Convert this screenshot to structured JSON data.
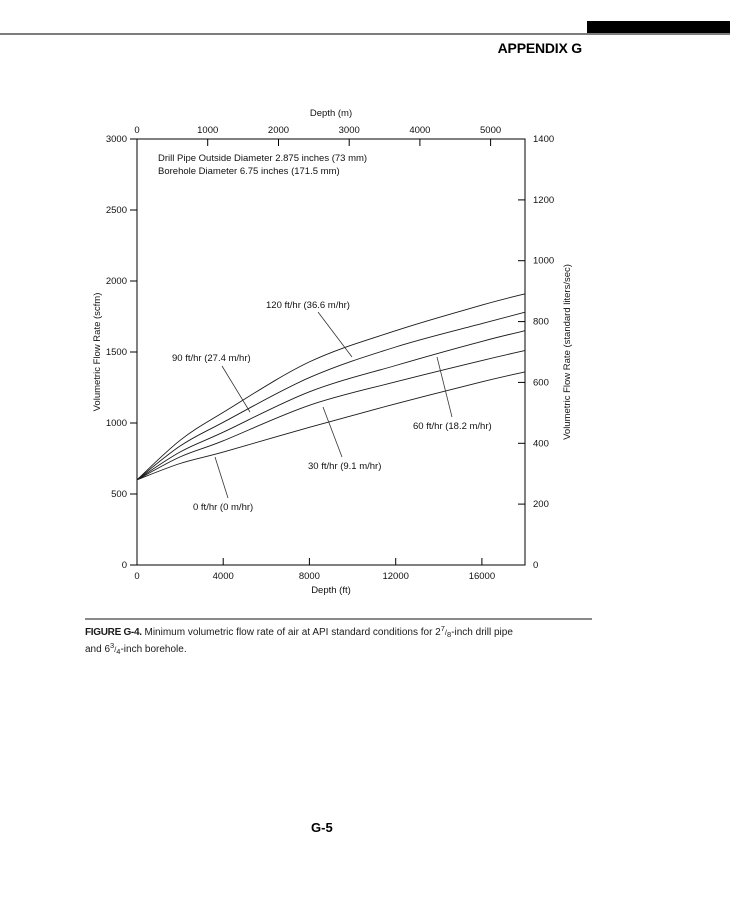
{
  "header": {
    "title": "APPENDIX G"
  },
  "chart_data": {
    "type": "line",
    "annotation": [
      "Drill Pipe Outside Diameter 2.875 inches (73 mm)",
      "Borehole Diameter 6.75 inches (171.5 mm)"
    ],
    "axes": {
      "bottom": {
        "label": "Depth (ft)",
        "min": 0,
        "max": 18000,
        "ticks": [
          0,
          4000,
          8000,
          12000,
          16000
        ]
      },
      "top": {
        "label": "Depth (m)",
        "min": 0,
        "max": 5486,
        "ticks": [
          0,
          1000,
          2000,
          3000,
          4000,
          5000
        ]
      },
      "left": {
        "label": "Volumetric Flow Rate (scfm)",
        "min": 0,
        "max": 3000,
        "ticks": [
          0,
          500,
          1000,
          1500,
          2000,
          2500,
          3000
        ]
      },
      "right": {
        "label": "Volumetric Flow Rate (standard liters/sec)",
        "min": 0,
        "max": 1400,
        "ticks": [
          0,
          200,
          400,
          600,
          800,
          1000,
          1200,
          1400
        ]
      }
    },
    "grid": false,
    "x_ft": [
      0,
      2000,
      4000,
      8000,
      12000,
      16000,
      18000
    ],
    "series": [
      {
        "name": "120 ft/hr (36.6 m/hr)",
        "values": [
          600,
          878,
          1075,
          1430,
          1650,
          1830,
          1910
        ]
      },
      {
        "name": "90 ft/hr (27.4 m/hr)",
        "values": [
          600,
          838,
          1005,
          1320,
          1535,
          1700,
          1780
        ]
      },
      {
        "name": "60 ft/hr (18.2 m/hr)",
        "values": [
          600,
          796,
          935,
          1220,
          1405,
          1575,
          1650
        ]
      },
      {
        "name": "30 ft/hr (9.1 m/hr)",
        "values": [
          600,
          761,
          875,
          1125,
          1290,
          1440,
          1510
        ]
      },
      {
        "name": "0 ft/hr (0 m/hr)",
        "values": [
          600,
          715,
          795,
          970,
          1135,
          1290,
          1360
        ]
      }
    ],
    "line_color": "#1a1a1a"
  },
  "caption": {
    "label": "FIGURE G-4.",
    "seg1": "Minimum volumetric flow rate of air at API standard conditions for 2",
    "frac1_num": "7",
    "frac1_den": "8",
    "seg2": "-inch drill pipe and 6",
    "frac2_num": "3",
    "frac2_den": "4",
    "seg3": "-inch borehole.",
    "frac_slash": "/"
  },
  "footer": {
    "page_number": "G-5"
  }
}
